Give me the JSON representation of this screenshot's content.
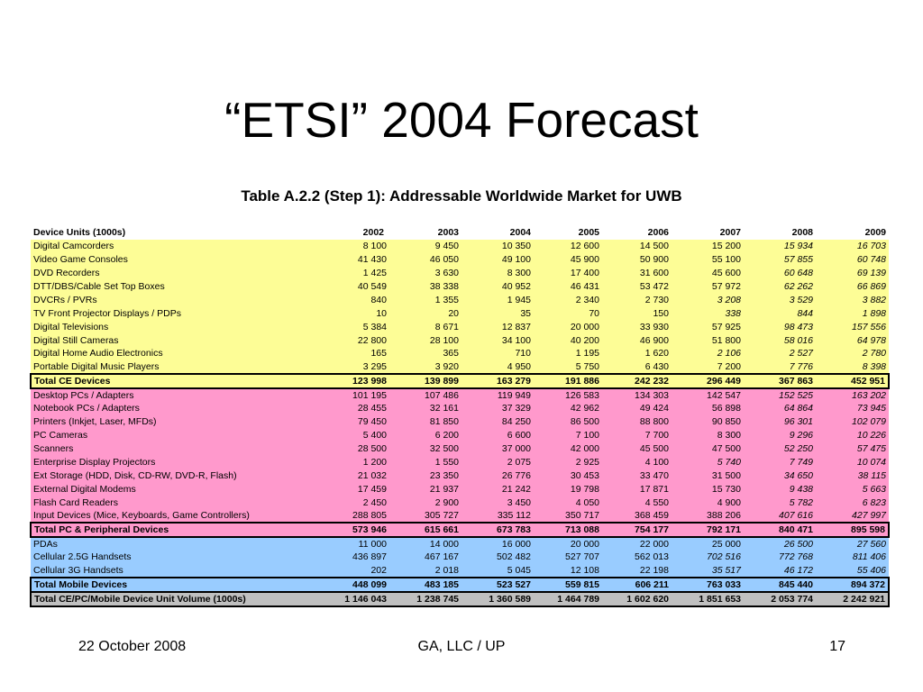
{
  "slide": {
    "title": "“ETSI” 2004 Forecast",
    "footer_date": "22 October 2008",
    "footer_org": "GA, LLC / UP",
    "page_number": "17"
  },
  "table": {
    "caption": "Table A.2.2 (Step 1): Addressable Worldwide Market for UWB",
    "label_header": "Device Units (1000s)",
    "years": [
      "2002",
      "2003",
      "2004",
      "2005",
      "2006",
      "2007",
      "2008",
      "2009"
    ],
    "colors": {
      "ce": "#fdfd96",
      "pc": "#ff99cc",
      "mobile": "#99ccff",
      "grand_total": "#c0c0c0"
    },
    "rows": [
      {
        "group": "ce",
        "label": "Digital Camcorders",
        "values": [
          "8 100",
          "9 450",
          "10 350",
          "12 600",
          "14 500",
          "15 200",
          "15 934",
          "16 703"
        ],
        "italic_from": 6
      },
      {
        "group": "ce",
        "label": "Video Game Consoles",
        "values": [
          "41 430",
          "46 050",
          "49 100",
          "45 900",
          "50 900",
          "55 100",
          "57 855",
          "60 748"
        ],
        "italic_from": 6
      },
      {
        "group": "ce",
        "label": "DVD Recorders",
        "values": [
          "1 425",
          "3 630",
          "8 300",
          "17 400",
          "31 600",
          "45 600",
          "60 648",
          "69 139"
        ],
        "italic_from": 6
      },
      {
        "group": "ce",
        "label": "DTT/DBS/Cable Set Top Boxes",
        "values": [
          "40 549",
          "38 338",
          "40 952",
          "46 431",
          "53 472",
          "57 972",
          "62 262",
          "66 869"
        ],
        "italic_from": 6
      },
      {
        "group": "ce",
        "label": "DVCRs / PVRs",
        "values": [
          "840",
          "1 355",
          "1 945",
          "2 340",
          "2 730",
          "3 208",
          "3 529",
          "3 882"
        ],
        "italic_from": 5
      },
      {
        "group": "ce",
        "label": "TV Front Projector Displays / PDPs",
        "values": [
          "10",
          "20",
          "35",
          "70",
          "150",
          "338",
          "844",
          "1 898"
        ],
        "italic_from": 5
      },
      {
        "group": "ce",
        "label": "Digital Televisions",
        "values": [
          "5 384",
          "8 671",
          "12 837",
          "20 000",
          "33 930",
          "57 925",
          "98 473",
          "157 556"
        ],
        "italic_from": 6
      },
      {
        "group": "ce",
        "label": "Digital Still Cameras",
        "values": [
          "22 800",
          "28 100",
          "34 100",
          "40 200",
          "46 900",
          "51 800",
          "58 016",
          "64 978"
        ],
        "italic_from": 6
      },
      {
        "group": "ce",
        "label": "Digital Home Audio Electronics",
        "values": [
          "165",
          "365",
          "710",
          "1 195",
          "1 620",
          "2 106",
          "2 527",
          "2 780"
        ],
        "italic_from": 5
      },
      {
        "group": "ce",
        "label": "Portable Digital Music Players",
        "values": [
          "3 295",
          "3 920",
          "4 950",
          "5 750",
          "6 430",
          "7 200",
          "7 776",
          "8 398"
        ],
        "italic_from": 6
      },
      {
        "group": "ce",
        "total": true,
        "label": "Total CE Devices",
        "values": [
          "123 998",
          "139 899",
          "163 279",
          "191 886",
          "242 232",
          "296 449",
          "367 863",
          "452 951"
        ]
      },
      {
        "group": "pc",
        "label": "Desktop PCs / Adapters",
        "values": [
          "101 195",
          "107 486",
          "119 949",
          "126 583",
          "134 303",
          "142 547",
          "152 525",
          "163 202"
        ],
        "italic_from": 6
      },
      {
        "group": "pc",
        "label": "Notebook PCs / Adapters",
        "values": [
          "28 455",
          "32 161",
          "37 329",
          "42 962",
          "49 424",
          "56 898",
          "64 864",
          "73 945"
        ],
        "italic_from": 6
      },
      {
        "group": "pc",
        "label": "Printers (Inkjet, Laser, MFDs)",
        "values": [
          "79 450",
          "81 850",
          "84 250",
          "86 500",
          "88 800",
          "90 850",
          "96 301",
          "102 079"
        ],
        "italic_from": 6
      },
      {
        "group": "pc",
        "label": "PC Cameras",
        "values": [
          "5 400",
          "6 200",
          "6 600",
          "7 100",
          "7 700",
          "8 300",
          "9 296",
          "10 226"
        ],
        "italic_from": 6
      },
      {
        "group": "pc",
        "label": "Scanners",
        "values": [
          "28 500",
          "32 500",
          "37 000",
          "42 000",
          "45 500",
          "47 500",
          "52 250",
          "57 475"
        ],
        "italic_from": 6
      },
      {
        "group": "pc",
        "label": "Enterprise Display Projectors",
        "values": [
          "1 200",
          "1 550",
          "2 075",
          "2 925",
          "4 100",
          "5 740",
          "7 749",
          "10 074"
        ],
        "italic_from": 5
      },
      {
        "group": "pc",
        "label": "Ext Storage (HDD, Disk, CD-RW, DVD-R, Flash)",
        "values": [
          "21 032",
          "23 350",
          "26 776",
          "30 453",
          "33 470",
          "31 500",
          "34 650",
          "38 115"
        ],
        "italic_from": 6
      },
      {
        "group": "pc",
        "label": "External Digital Modems",
        "values": [
          "17 459",
          "21 937",
          "21 242",
          "19 798",
          "17 871",
          "15 730",
          "9 438",
          "5 663"
        ],
        "italic_from": 6
      },
      {
        "group": "pc",
        "label": "Flash Card Readers",
        "values": [
          "2 450",
          "2 900",
          "3 450",
          "4 050",
          "4 550",
          "4 900",
          "5 782",
          "6 823"
        ],
        "italic_from": 6
      },
      {
        "group": "pc",
        "label": "Input Devices (Mice, Keyboards, Game Controllers)",
        "values": [
          "288 805",
          "305 727",
          "335 112",
          "350 717",
          "368 459",
          "388 206",
          "407 616",
          "427 997"
        ],
        "italic_from": 6
      },
      {
        "group": "pc",
        "total": true,
        "label": "Total PC & Peripheral Devices",
        "values": [
          "573 946",
          "615 661",
          "673 783",
          "713 088",
          "754 177",
          "792 171",
          "840 471",
          "895 598"
        ]
      },
      {
        "group": "mobile",
        "label": "PDAs",
        "values": [
          "11 000",
          "14 000",
          "16 000",
          "20 000",
          "22 000",
          "25 000",
          "26 500",
          "27 560"
        ],
        "italic_from": 6
      },
      {
        "group": "mobile",
        "label": "Cellular 2.5G Handsets",
        "values": [
          "436 897",
          "467 167",
          "502 482",
          "527 707",
          "562 013",
          "702 516",
          "772 768",
          "811 406"
        ],
        "italic_from": 5
      },
      {
        "group": "mobile",
        "label": "Cellular 3G Handsets",
        "values": [
          "202",
          "2 018",
          "5 045",
          "12 108",
          "22 198",
          "35 517",
          "46 172",
          "55 406"
        ],
        "italic_from": 5
      },
      {
        "group": "mobile",
        "total": true,
        "label": "Total Mobile Devices",
        "values": [
          "448 099",
          "483 185",
          "523 527",
          "559 815",
          "606 211",
          "763 033",
          "845 440",
          "894 372"
        ]
      },
      {
        "group": "grand",
        "grand": true,
        "label": "Total CE/PC/Mobile Device Unit Volume (1000s)",
        "values": [
          "1 146 043",
          "1 238 745",
          "1 360 589",
          "1 464 789",
          "1 602 620",
          "1 851 653",
          "2 053 774",
          "2 242 921"
        ]
      }
    ]
  }
}
